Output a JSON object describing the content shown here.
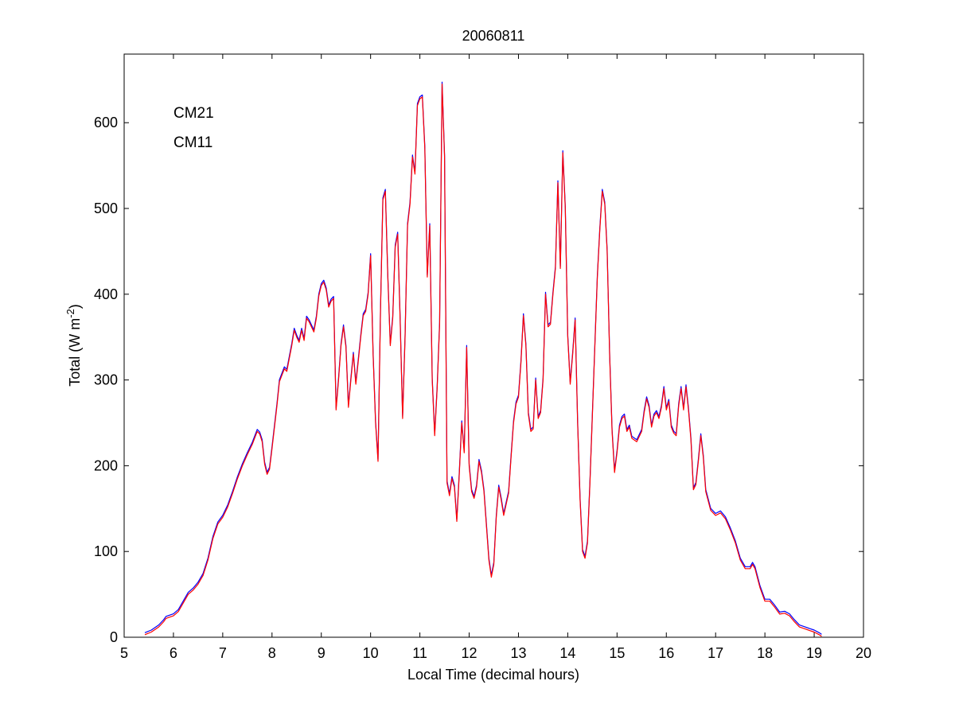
{
  "chart_data": {
    "type": "line",
    "title": "20060811",
    "xlabel": "Local Time (decimal hours)",
    "ylabel": {
      "prefix": "Total (W m",
      "sup": "-2",
      "suffix": ")"
    },
    "xlim": [
      5,
      20
    ],
    "ylim": [
      0,
      680
    ],
    "xticks": [
      5,
      6,
      7,
      8,
      9,
      10,
      11,
      12,
      13,
      14,
      15,
      16,
      17,
      18,
      19,
      20
    ],
    "yticks": [
      0,
      100,
      200,
      300,
      400,
      500,
      600
    ],
    "grid": false,
    "legend_position": "top-left",
    "series": [
      {
        "name": "CM21",
        "color": "#0000ff"
      },
      {
        "name": "CM11",
        "color": "#ff0000"
      }
    ],
    "points": [
      [
        5.42,
        3
      ],
      [
        5.55,
        6
      ],
      [
        5.7,
        12
      ],
      [
        5.8,
        18
      ],
      [
        5.85,
        22
      ],
      [
        6.0,
        25
      ],
      [
        6.1,
        30
      ],
      [
        6.3,
        50
      ],
      [
        6.4,
        55
      ],
      [
        6.5,
        62
      ],
      [
        6.6,
        72
      ],
      [
        6.7,
        90
      ],
      [
        6.8,
        115
      ],
      [
        6.9,
        132
      ],
      [
        7.0,
        140
      ],
      [
        7.1,
        152
      ],
      [
        7.2,
        168
      ],
      [
        7.3,
        185
      ],
      [
        7.4,
        200
      ],
      [
        7.5,
        213
      ],
      [
        7.6,
        225
      ],
      [
        7.7,
        240
      ],
      [
        7.75,
        237
      ],
      [
        7.8,
        228
      ],
      [
        7.85,
        202
      ],
      [
        7.9,
        190
      ],
      [
        7.95,
        196
      ],
      [
        8.0,
        220
      ],
      [
        8.1,
        270
      ],
      [
        8.15,
        298
      ],
      [
        8.25,
        313
      ],
      [
        8.3,
        310
      ],
      [
        8.4,
        340
      ],
      [
        8.45,
        358
      ],
      [
        8.5,
        350
      ],
      [
        8.55,
        344
      ],
      [
        8.6,
        358
      ],
      [
        8.65,
        346
      ],
      [
        8.7,
        372
      ],
      [
        8.75,
        368
      ],
      [
        8.8,
        362
      ],
      [
        8.85,
        356
      ],
      [
        8.9,
        372
      ],
      [
        8.95,
        398
      ],
      [
        9.0,
        410
      ],
      [
        9.05,
        414
      ],
      [
        9.1,
        405
      ],
      [
        9.15,
        385
      ],
      [
        9.2,
        392
      ],
      [
        9.25,
        395
      ],
      [
        9.3,
        265
      ],
      [
        9.35,
        300
      ],
      [
        9.4,
        340
      ],
      [
        9.45,
        362
      ],
      [
        9.5,
        338
      ],
      [
        9.55,
        268
      ],
      [
        9.6,
        300
      ],
      [
        9.65,
        330
      ],
      [
        9.7,
        295
      ],
      [
        9.75,
        322
      ],
      [
        9.8,
        350
      ],
      [
        9.85,
        375
      ],
      [
        9.9,
        380
      ],
      [
        9.95,
        400
      ],
      [
        10.0,
        445
      ],
      [
        10.05,
        330
      ],
      [
        10.1,
        250
      ],
      [
        10.15,
        205
      ],
      [
        10.2,
        380
      ],
      [
        10.25,
        510
      ],
      [
        10.3,
        520
      ],
      [
        10.35,
        420
      ],
      [
        10.4,
        340
      ],
      [
        10.45,
        372
      ],
      [
        10.5,
        455
      ],
      [
        10.55,
        470
      ],
      [
        10.6,
        370
      ],
      [
        10.65,
        255
      ],
      [
        10.7,
        350
      ],
      [
        10.75,
        480
      ],
      [
        10.8,
        505
      ],
      [
        10.85,
        560
      ],
      [
        10.9,
        540
      ],
      [
        10.95,
        620
      ],
      [
        11.0,
        628
      ],
      [
        11.05,
        630
      ],
      [
        11.1,
        570
      ],
      [
        11.15,
        420
      ],
      [
        11.2,
        480
      ],
      [
        11.25,
        300
      ],
      [
        11.3,
        235
      ],
      [
        11.35,
        290
      ],
      [
        11.4,
        365
      ],
      [
        11.45,
        645
      ],
      [
        11.5,
        560
      ],
      [
        11.55,
        180
      ],
      [
        11.6,
        165
      ],
      [
        11.65,
        185
      ],
      [
        11.7,
        175
      ],
      [
        11.75,
        135
      ],
      [
        11.8,
        190
      ],
      [
        11.85,
        250
      ],
      [
        11.9,
        215
      ],
      [
        11.95,
        338
      ],
      [
        12.0,
        200
      ],
      [
        12.05,
        170
      ],
      [
        12.1,
        162
      ],
      [
        12.15,
        175
      ],
      [
        12.2,
        205
      ],
      [
        12.25,
        192
      ],
      [
        12.3,
        170
      ],
      [
        12.35,
        130
      ],
      [
        12.4,
        90
      ],
      [
        12.45,
        70
      ],
      [
        12.5,
        85
      ],
      [
        12.55,
        140
      ],
      [
        12.6,
        175
      ],
      [
        12.65,
        160
      ],
      [
        12.7,
        142
      ],
      [
        12.75,
        155
      ],
      [
        12.8,
        168
      ],
      [
        12.85,
        210
      ],
      [
        12.9,
        250
      ],
      [
        12.95,
        272
      ],
      [
        13.0,
        280
      ],
      [
        13.05,
        320
      ],
      [
        13.1,
        375
      ],
      [
        13.15,
        340
      ],
      [
        13.2,
        260
      ],
      [
        13.25,
        240
      ],
      [
        13.3,
        243
      ],
      [
        13.35,
        300
      ],
      [
        13.4,
        255
      ],
      [
        13.45,
        262
      ],
      [
        13.5,
        300
      ],
      [
        13.55,
        400
      ],
      [
        13.6,
        362
      ],
      [
        13.65,
        365
      ],
      [
        13.7,
        400
      ],
      [
        13.75,
        430
      ],
      [
        13.8,
        530
      ],
      [
        13.85,
        430
      ],
      [
        13.9,
        565
      ],
      [
        13.95,
        500
      ],
      [
        14.0,
        350
      ],
      [
        14.05,
        295
      ],
      [
        14.1,
        330
      ],
      [
        14.15,
        370
      ],
      [
        14.2,
        250
      ],
      [
        14.25,
        160
      ],
      [
        14.3,
        100
      ],
      [
        14.35,
        92
      ],
      [
        14.4,
        110
      ],
      [
        14.45,
        180
      ],
      [
        14.5,
        260
      ],
      [
        14.55,
        340
      ],
      [
        14.6,
        420
      ],
      [
        14.65,
        475
      ],
      [
        14.7,
        520
      ],
      [
        14.75,
        505
      ],
      [
        14.8,
        450
      ],
      [
        14.85,
        330
      ],
      [
        14.9,
        240
      ],
      [
        14.95,
        192
      ],
      [
        15.0,
        215
      ],
      [
        15.05,
        245
      ],
      [
        15.1,
        255
      ],
      [
        15.15,
        258
      ],
      [
        15.2,
        240
      ],
      [
        15.25,
        245
      ],
      [
        15.3,
        232
      ],
      [
        15.4,
        228
      ],
      [
        15.5,
        240
      ],
      [
        15.55,
        262
      ],
      [
        15.6,
        278
      ],
      [
        15.65,
        268
      ],
      [
        15.7,
        245
      ],
      [
        15.75,
        258
      ],
      [
        15.8,
        262
      ],
      [
        15.85,
        255
      ],
      [
        15.9,
        268
      ],
      [
        15.95,
        290
      ],
      [
        16.0,
        265
      ],
      [
        16.05,
        275
      ],
      [
        16.1,
        245
      ],
      [
        16.15,
        238
      ],
      [
        16.2,
        235
      ],
      [
        16.25,
        270
      ],
      [
        16.3,
        290
      ],
      [
        16.35,
        265
      ],
      [
        16.4,
        292
      ],
      [
        16.45,
        265
      ],
      [
        16.5,
        230
      ],
      [
        16.55,
        172
      ],
      [
        16.6,
        178
      ],
      [
        16.65,
        205
      ],
      [
        16.7,
        235
      ],
      [
        16.75,
        210
      ],
      [
        16.8,
        170
      ],
      [
        16.9,
        148
      ],
      [
        17.0,
        142
      ],
      [
        17.1,
        145
      ],
      [
        17.2,
        138
      ],
      [
        17.3,
        125
      ],
      [
        17.4,
        110
      ],
      [
        17.5,
        90
      ],
      [
        17.6,
        80
      ],
      [
        17.7,
        80
      ],
      [
        17.75,
        85
      ],
      [
        17.8,
        80
      ],
      [
        17.9,
        58
      ],
      [
        18.0,
        42
      ],
      [
        18.1,
        42
      ],
      [
        18.2,
        35
      ],
      [
        18.3,
        27
      ],
      [
        18.4,
        28
      ],
      [
        18.5,
        25
      ],
      [
        18.6,
        18
      ],
      [
        18.7,
        12
      ],
      [
        18.8,
        10
      ],
      [
        18.9,
        8
      ],
      [
        19.0,
        6
      ],
      [
        19.1,
        3
      ],
      [
        19.15,
        1
      ]
    ]
  }
}
